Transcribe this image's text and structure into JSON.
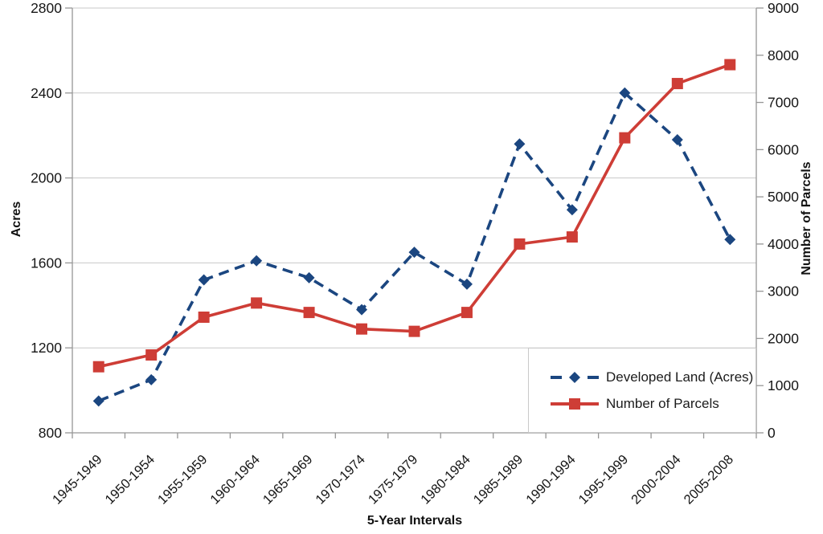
{
  "chart_data": {
    "type": "line",
    "title": "",
    "x_title": "5-Year Intervals",
    "y_left": {
      "title": "Acres",
      "min": 800,
      "max": 2800,
      "step": 400,
      "ticks": [
        800,
        1200,
        1600,
        2000,
        2400,
        2800
      ]
    },
    "y_right": {
      "title": "Number of Parcels",
      "min": 0,
      "max": 9000,
      "step": 1000,
      "ticks": [
        0,
        1000,
        2000,
        3000,
        4000,
        5000,
        6000,
        7000,
        8000,
        9000
      ]
    },
    "categories": [
      "1945-1949",
      "1950-1954",
      "1955-1959",
      "1960-1964",
      "1965-1969",
      "1970-1974",
      "1975-1979",
      "1980-1984",
      "1985-1989",
      "1990-1994",
      "1995-1999",
      "2000-2004",
      "2005-2008"
    ],
    "series": [
      {
        "name": "Developed Land (Acres)",
        "axis": "left",
        "color": "#1b4680",
        "style": "dashed",
        "marker": "diamond",
        "values": [
          950,
          1050,
          1520,
          1610,
          1530,
          1380,
          1650,
          1500,
          2160,
          1850,
          2400,
          2180,
          1710
        ]
      },
      {
        "name": "Number of Parcels",
        "axis": "right",
        "color": "#ce3d36",
        "style": "solid",
        "marker": "square",
        "values": [
          1400,
          1650,
          2450,
          2750,
          2550,
          2200,
          2150,
          2550,
          4000,
          4150,
          6250,
          7400,
          7800
        ]
      }
    ],
    "grid": "horizontal",
    "legend_position": "inside-bottom-right"
  },
  "colors": {
    "grid": "#c8c8c8",
    "axis": "#969696",
    "tick_text": "#161616",
    "background": "#ffffff"
  }
}
